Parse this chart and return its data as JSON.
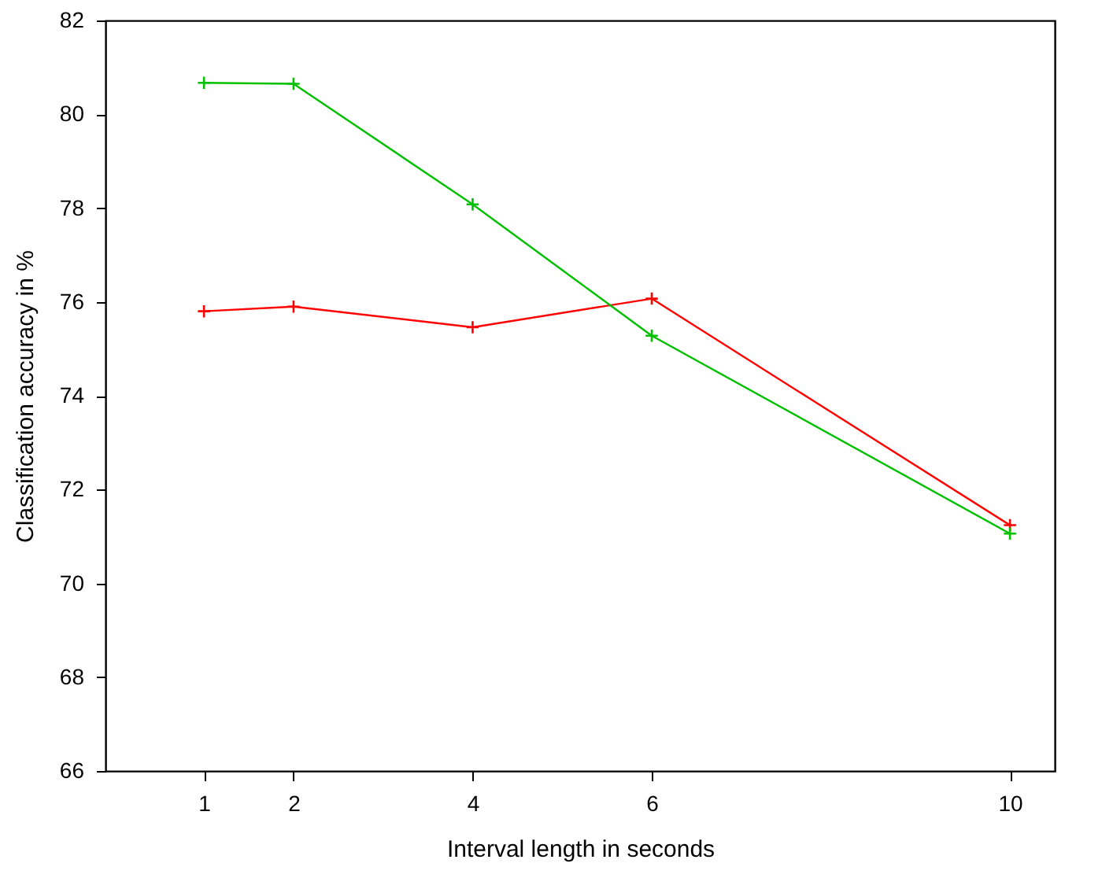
{
  "chart_data": {
    "type": "line",
    "xlabel": "Interval length in seconds",
    "ylabel": "Classification accuracy in %",
    "x": [
      1,
      2,
      4,
      6,
      10
    ],
    "series": [
      {
        "color": "#ff0000",
        "values": [
          75.8,
          75.9,
          75.46,
          76.07,
          71.24
        ],
        "marker": "cross"
      },
      {
        "color": "#00c000",
        "values": [
          80.67,
          80.65,
          78.08,
          75.28,
          71.06
        ],
        "marker": "cross"
      }
    ],
    "xlim": [
      -0.1,
      10.5
    ],
    "xticks": [
      1,
      2,
      4,
      6,
      10
    ],
    "ylim": [
      66,
      82
    ],
    "yticks": [
      66,
      68,
      70,
      72,
      74,
      76,
      78,
      80,
      82
    ],
    "grid": false,
    "line_style": "solid"
  }
}
